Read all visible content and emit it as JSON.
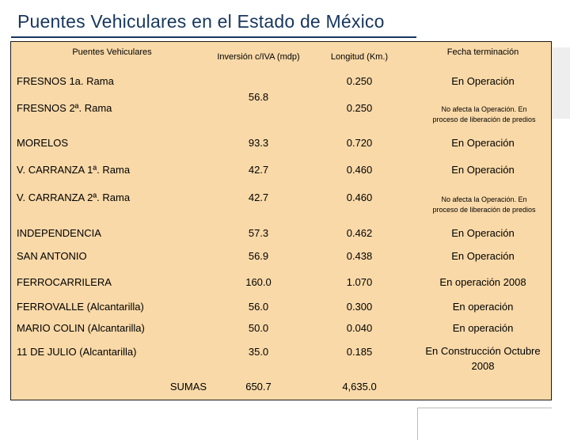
{
  "title": "Puentes Vehiculares en el Estado de México",
  "headers": {
    "name": "Puentes Vehiculares",
    "inversion": "Inversión c/IVA (mdp)",
    "longitud": "Longitud (Km.)",
    "fecha": "Fecha terminación"
  },
  "rows": [
    {
      "name": "FRESNOS 1a. Rama",
      "longitud": "0.250",
      "fecha": "En Operación"
    },
    {
      "name": "FRESNOS 2ª. Rama",
      "longitud": "0.250",
      "fecha": "No afecta la Operación. En proceso de liberación de predios"
    },
    {
      "name": "MORELOS",
      "inversion": "93.3",
      "longitud": "0.720",
      "fecha": "En Operación"
    },
    {
      "name": "V. CARRANZA 1ª. Rama",
      "inversion": "42.7",
      "longitud": "0.460",
      "fecha": "En Operación"
    },
    {
      "name": "V. CARRANZA 2ª. Rama",
      "inversion": "42.7",
      "longitud": "0.460",
      "fecha": "No afecta la Operación. En proceso de liberación de predios"
    },
    {
      "name": "INDEPENDENCIA",
      "inversion": "57.3",
      "longitud": "0.462",
      "fecha": "En Operación"
    },
    {
      "name": "SAN ANTONIO",
      "inversion": "56.9",
      "longitud": "0.438",
      "fecha": "En Operación"
    },
    {
      "name": "FERROCARRILERA",
      "inversion": "160.0",
      "longitud": "1.070",
      "fecha": "En operación 2008"
    },
    {
      "name": "FERROVALLE (Alcantarilla)",
      "inversion": "56.0",
      "longitud": "0.300",
      "fecha": "En operación"
    },
    {
      "name": "MARIO COLIN (Alcantarilla)",
      "inversion": "50.0",
      "longitud": "0.040",
      "fecha": "En operación"
    },
    {
      "name": "11 DE JULIO (Alcantarilla)",
      "inversion": "35.0",
      "longitud": "0.185",
      "fecha": "En Construcción Octubre 2008"
    }
  ],
  "fresnos_inversion": "56.8",
  "totals": {
    "label": "SUMAS",
    "inversion": "650.7",
    "longitud": "4,635.0"
  }
}
